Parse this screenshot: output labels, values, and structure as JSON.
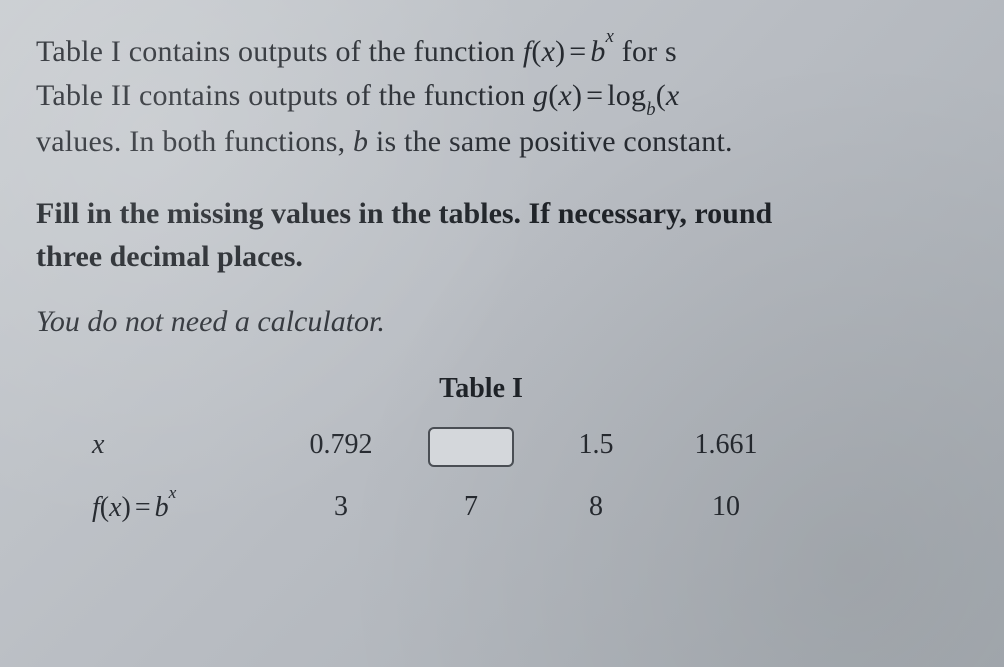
{
  "paragraph1": {
    "line1_pre": "Table I contains outputs of the function ",
    "line1_math_f": "f",
    "line1_math_x": "x",
    "line1_math_eq": "=",
    "line1_math_b": "b",
    "line1_math_exp": "x",
    "line1_post": " for s",
    "line2_pre": "Table II contains outputs of the function ",
    "line2_math_g": "g",
    "line2_math_x": "x",
    "line2_math_eq": "=",
    "line2_math_log": "log",
    "line2_math_sub": "b",
    "line2_math_arg": "x",
    "line3_pre": "values. In both functions, ",
    "line3_b": "b",
    "line3_post": " is the same positive constant."
  },
  "paragraph2": {
    "line1": "Fill in the missing values in the tables. If necessary, round",
    "line2": "three decimal places."
  },
  "paragraph3": "You do not need a calculator.",
  "table": {
    "title": "Table I",
    "row_x_header": "x",
    "row_f_header_f": "f",
    "row_f_header_x": "x",
    "row_f_header_eq": "=",
    "row_f_header_b": "b",
    "row_f_header_exp": "x",
    "x_values": [
      "0.792",
      "",
      "1.5",
      "1.661"
    ],
    "f_values": [
      "3",
      "7",
      "8",
      "10"
    ],
    "colors": {
      "border": "#3a3e44",
      "input_border": "#4a4e54",
      "input_bg": "#d4d7db",
      "text": "#262a30"
    },
    "fontsize": 28
  }
}
